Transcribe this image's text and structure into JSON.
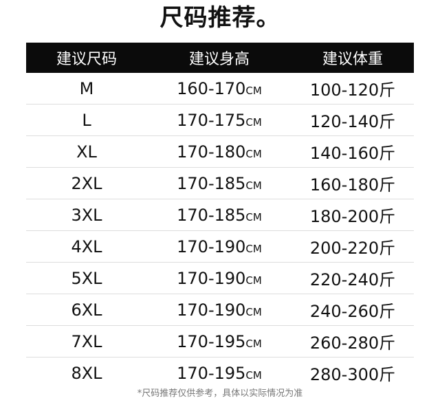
{
  "title": "尺码推荐。",
  "headers": [
    "建议尺码",
    "建议身高",
    "建议体重"
  ],
  "height_unit": "CM",
  "weight_unit": "斤",
  "rows": [
    {
      "size": "M",
      "height": "160-170",
      "weight": "100-120"
    },
    {
      "size": "L",
      "height": "170-175",
      "weight": "120-140"
    },
    {
      "size": "XL",
      "height": "170-180",
      "weight": "140-160"
    },
    {
      "size": "2XL",
      "height": "170-185",
      "weight": "160-180"
    },
    {
      "size": "3XL",
      "height": "170-185",
      "weight": "180-200"
    },
    {
      "size": "4XL",
      "height": "170-190",
      "weight": "200-220"
    },
    {
      "size": "5XL",
      "height": "170-190",
      "weight": "220-240"
    },
    {
      "size": "6XL",
      "height": "170-190",
      "weight": "240-260"
    },
    {
      "size": "7XL",
      "height": "170-195",
      "weight": "260-280"
    },
    {
      "size": "8XL",
      "height": "170-195",
      "weight": "280-300"
    }
  ],
  "note": "*尺码推荐仅供参考，具体以实际情况为准",
  "colors": {
    "header_bg": "#0b0b0b",
    "header_text": "#ffffff",
    "divider": "#dddddd",
    "note": "#777777"
  }
}
